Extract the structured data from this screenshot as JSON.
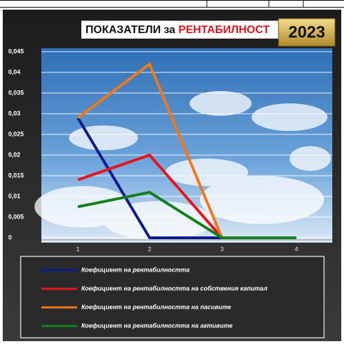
{
  "chart_data": {
    "type": "line",
    "title": "ПОКАЗАТЕЛИ за",
    "title_highlight": "РЕНТАБИЛНОСТ",
    "year": "2023",
    "categories": [
      "1",
      "2",
      "3",
      "4"
    ],
    "series": [
      {
        "name": "Коефициент на рентабилността",
        "color": "#0a1a8c",
        "values": [
          0.029,
          0,
          0,
          0
        ]
      },
      {
        "name": "Коефициент на рентабилността на собствения капитал",
        "color": "#e8141c",
        "values": [
          0.014,
          0.02,
          0,
          0
        ]
      },
      {
        "name": "Коефициент на рентабилността на пасивите",
        "color": "#f07818",
        "values": [
          0.029,
          0.042,
          0,
          0
        ]
      },
      {
        "name": "Коефициент на рентабилността на активите",
        "color": "#12801e",
        "values": [
          0.0075,
          0.011,
          0,
          0
        ]
      }
    ],
    "ylim": [
      0,
      0.045
    ],
    "yticks": [
      0,
      {
        "value": 0.005,
        "label": "0,005"
      },
      {
        "value": 0.01,
        "label": "0,01"
      },
      {
        "value": 0.015,
        "label": "0,015"
      },
      {
        "value": 0.02,
        "label": "0,02"
      },
      {
        "value": 0.025,
        "label": "0,025"
      },
      {
        "value": 0.03,
        "label": "0,03"
      },
      {
        "value": 0.035,
        "label": "0,035"
      },
      {
        "value": 0.04,
        "label": "0,04"
      },
      {
        "value": 0.045,
        "label": "0,045"
      }
    ],
    "grid": true
  }
}
